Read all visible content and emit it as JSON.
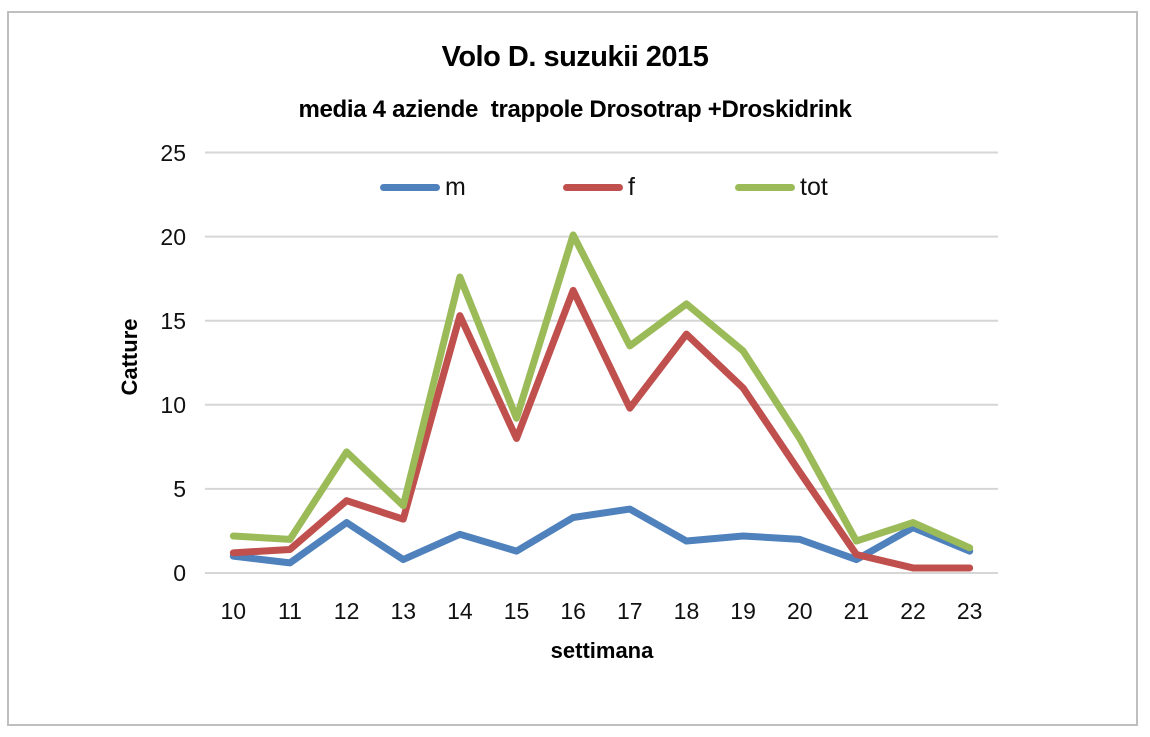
{
  "chart_data": {
    "type": "line",
    "title": "Volo D. suzukii 2015",
    "subtitle": "media 4 aziende  trappole Drosotrap +Droskidrink",
    "xlabel": "settimana",
    "ylabel": "Catture",
    "x": [
      10,
      11,
      12,
      13,
      14,
      15,
      16,
      17,
      18,
      19,
      20,
      21,
      22,
      23
    ],
    "ylim": [
      0,
      25
    ],
    "yticks": [
      0,
      5,
      10,
      15,
      20,
      25
    ],
    "grid": true,
    "legend_position": "top-inside",
    "gridline_color": "#d6d6d6",
    "series": [
      {
        "name": "m",
        "color": "#4F81BD",
        "values": [
          1.0,
          0.6,
          3.0,
          0.8,
          2.3,
          1.3,
          3.3,
          3.8,
          1.9,
          2.2,
          2.0,
          0.8,
          2.7,
          1.3
        ]
      },
      {
        "name": "f",
        "color": "#C0504D",
        "values": [
          1.2,
          1.4,
          4.3,
          3.2,
          15.3,
          8.0,
          16.8,
          9.8,
          14.2,
          11.0,
          6.0,
          1.1,
          0.3,
          0.3
        ]
      },
      {
        "name": "tot",
        "color": "#9BBB59",
        "values": [
          2.2,
          2.0,
          7.2,
          4.0,
          17.6,
          9.2,
          20.1,
          13.5,
          16.0,
          13.2,
          8.0,
          1.9,
          3.0,
          1.5
        ]
      }
    ]
  }
}
